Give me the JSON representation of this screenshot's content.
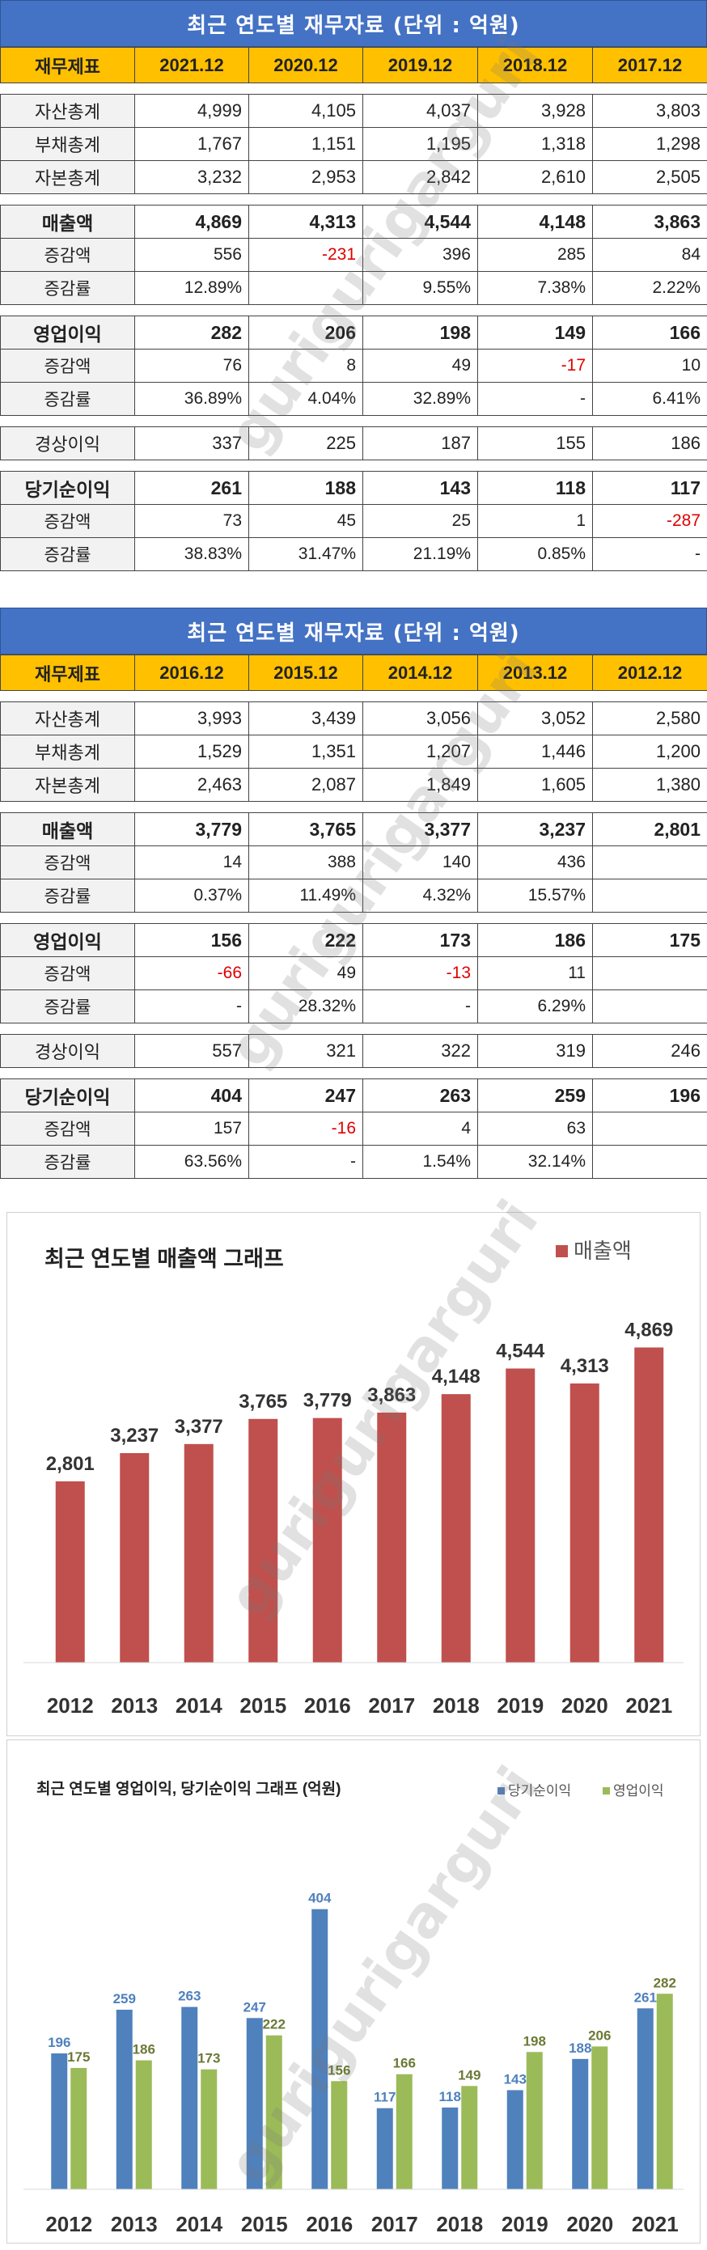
{
  "table_title": "최근 연도별 재무자료 (단위 : 억원)",
  "table1": {
    "header": [
      "재무제표",
      "2021.12",
      "2020.12",
      "2019.12",
      "2018.12",
      "2017.12"
    ],
    "groups": [
      [
        {
          "label": "자산총계",
          "cells": [
            "4,999",
            "4,105",
            "4,037",
            "3,928",
            "3,803"
          ],
          "kind": "plain"
        },
        {
          "label": "부채총계",
          "cells": [
            "1,767",
            "1,151",
            "1,195",
            "1,318",
            "1,298"
          ],
          "kind": "plain"
        },
        {
          "label": "자본총계",
          "cells": [
            "3,232",
            "2,953",
            "2,842",
            "2,610",
            "2,505"
          ],
          "kind": "plain"
        }
      ],
      [
        {
          "label": "매출액",
          "cells": [
            "4,869",
            "4,313",
            "4,544",
            "4,148",
            "3,863"
          ],
          "kind": "major"
        },
        {
          "label": "증감액",
          "cells": [
            "556",
            "-231",
            "396",
            "285",
            "84"
          ],
          "kind": "sub"
        },
        {
          "label": "증감률",
          "cells": [
            "12.89%",
            "",
            "9.55%",
            "7.38%",
            "2.22%"
          ],
          "kind": "sub"
        }
      ],
      [
        {
          "label": "영업이익",
          "cells": [
            "282",
            "206",
            "198",
            "149",
            "166"
          ],
          "kind": "major"
        },
        {
          "label": "증감액",
          "cells": [
            "76",
            "8",
            "49",
            "-17",
            "10"
          ],
          "kind": "sub"
        },
        {
          "label": "증감률",
          "cells": [
            "36.89%",
            "4.04%",
            "32.89%",
            "-",
            "6.41%"
          ],
          "kind": "sub"
        }
      ],
      [
        {
          "label": "경상이익",
          "cells": [
            "337",
            "225",
            "187",
            "155",
            "186"
          ],
          "kind": "plain"
        }
      ],
      [
        {
          "label": "당기순이익",
          "cells": [
            "261",
            "188",
            "143",
            "118",
            "117"
          ],
          "kind": "major"
        },
        {
          "label": "증감액",
          "cells": [
            "73",
            "45",
            "25",
            "1",
            "-287"
          ],
          "kind": "sub"
        },
        {
          "label": "증감률",
          "cells": [
            "38.83%",
            "31.47%",
            "21.19%",
            "0.85%",
            "-"
          ],
          "kind": "sub"
        }
      ]
    ]
  },
  "table2": {
    "header": [
      "재무제표",
      "2016.12",
      "2015.12",
      "2014.12",
      "2013.12",
      "2012.12"
    ],
    "groups": [
      [
        {
          "label": "자산총계",
          "cells": [
            "3,993",
            "3,439",
            "3,056",
            "3,052",
            "2,580"
          ],
          "kind": "plain"
        },
        {
          "label": "부채총계",
          "cells": [
            "1,529",
            "1,351",
            "1,207",
            "1,446",
            "1,200"
          ],
          "kind": "plain"
        },
        {
          "label": "자본총계",
          "cells": [
            "2,463",
            "2,087",
            "1,849",
            "1,605",
            "1,380"
          ],
          "kind": "plain"
        }
      ],
      [
        {
          "label": "매출액",
          "cells": [
            "3,779",
            "3,765",
            "3,377",
            "3,237",
            "2,801"
          ],
          "kind": "major"
        },
        {
          "label": "증감액",
          "cells": [
            "14",
            "388",
            "140",
            "436",
            ""
          ],
          "kind": "sub"
        },
        {
          "label": "증감률",
          "cells": [
            "0.37%",
            "11.49%",
            "4.32%",
            "15.57%",
            ""
          ],
          "kind": "sub"
        }
      ],
      [
        {
          "label": "영업이익",
          "cells": [
            "156",
            "222",
            "173",
            "186",
            "175"
          ],
          "kind": "major"
        },
        {
          "label": "증감액",
          "cells": [
            "-66",
            "49",
            "-13",
            "11",
            ""
          ],
          "kind": "sub"
        },
        {
          "label": "증감률",
          "cells": [
            "-",
            "28.32%",
            "-",
            "6.29%",
            ""
          ],
          "kind": "sub"
        }
      ],
      [
        {
          "label": "경상이익",
          "cells": [
            "557",
            "321",
            "322",
            "319",
            "246"
          ],
          "kind": "plain"
        }
      ],
      [
        {
          "label": "당기순이익",
          "cells": [
            "404",
            "247",
            "263",
            "259",
            "196"
          ],
          "kind": "major"
        },
        {
          "label": "증감액",
          "cells": [
            "157",
            "-16",
            "4",
            "63",
            ""
          ],
          "kind": "sub"
        },
        {
          "label": "증감률",
          "cells": [
            "63.56%",
            "-",
            "1.54%",
            "32.14%",
            ""
          ],
          "kind": "sub"
        }
      ]
    ]
  },
  "watermark": "gurigurigarguri",
  "chart_data": [
    {
      "type": "bar",
      "title": "최근 연도별 매출액 그래프",
      "categories": [
        "2012",
        "2013",
        "2014",
        "2015",
        "2016",
        "2017",
        "2018",
        "2019",
        "2020",
        "2021"
      ],
      "series": [
        {
          "name": "매출액",
          "values": [
            2801,
            3237,
            3377,
            3765,
            3779,
            3863,
            4148,
            4544,
            4313,
            4869
          ],
          "color": "#c0504d"
        }
      ],
      "value_labels": [
        "2,801",
        "3,237",
        "3,377",
        "3,765",
        "3,779",
        "3,863",
        "4,148",
        "4,544",
        "4,313",
        "4,869"
      ],
      "legend_position": "top-right",
      "ylim": [
        0,
        5500
      ],
      "grid": false
    },
    {
      "type": "bar",
      "title": "최근 연도별 영업이익, 당기순이익 그래프 (억원)",
      "categories": [
        "2012",
        "2013",
        "2014",
        "2015",
        "2016",
        "2017",
        "2018",
        "2019",
        "2020",
        "2021"
      ],
      "series": [
        {
          "name": "당기순이익",
          "values": [
            196,
            259,
            263,
            247,
            404,
            117,
            118,
            143,
            188,
            261
          ],
          "color": "#4f81bd"
        },
        {
          "name": "영업이익",
          "values": [
            175,
            186,
            173,
            222,
            156,
            166,
            149,
            198,
            206,
            282
          ],
          "color": "#9bbb59"
        }
      ],
      "legend_position": "top-right",
      "ylim": [
        0,
        420
      ],
      "grid": false
    }
  ]
}
